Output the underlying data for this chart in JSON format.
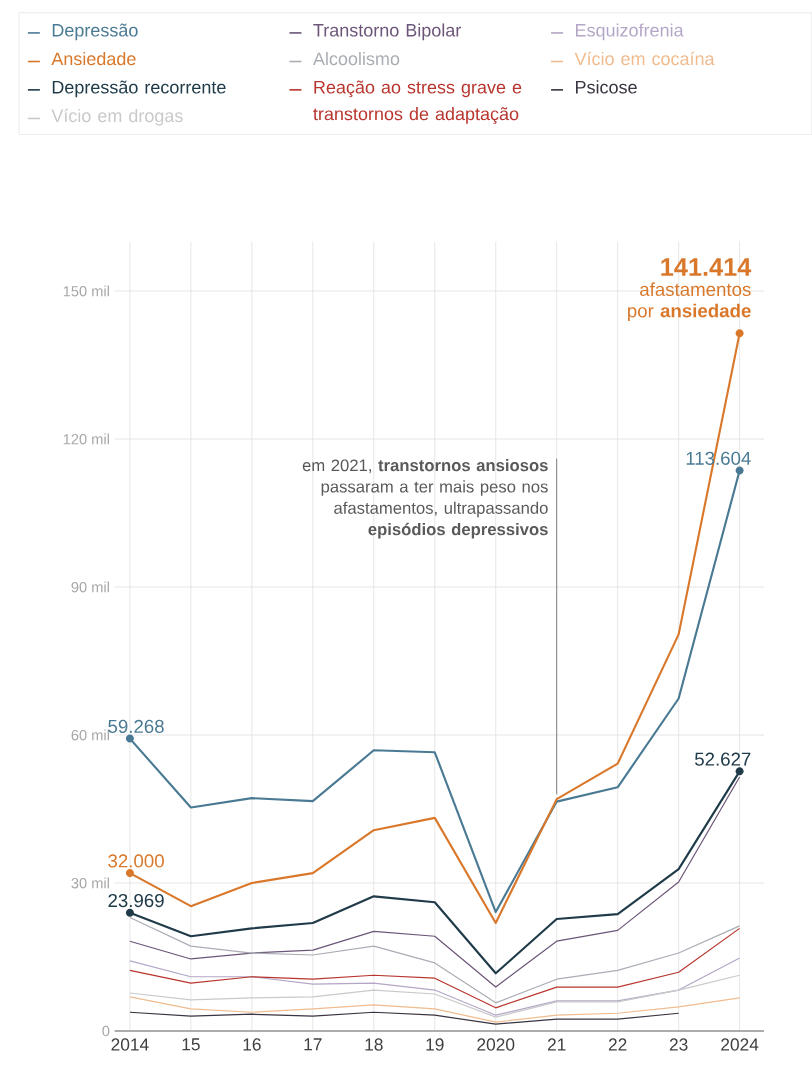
{
  "chart_data": {
    "type": "line",
    "x": [
      2014,
      2015,
      2016,
      2017,
      2018,
      2019,
      2020,
      2021,
      2022,
      2023,
      2024
    ],
    "xlim": [
      2013.75,
      2024.4
    ],
    "ylim": [
      0,
      160
    ],
    "xticks": [
      2014,
      {
        "value": 2015,
        "label": "15"
      },
      {
        "value": 2016,
        "label": "16"
      },
      {
        "value": 2017,
        "label": "17"
      },
      {
        "value": 2018,
        "label": "18"
      },
      {
        "value": 2019,
        "label": "19"
      },
      2020,
      {
        "value": 2021,
        "label": "21"
      },
      {
        "value": 2022,
        "label": "22"
      },
      {
        "value": 2023,
        "label": "23"
      },
      2024
    ],
    "yticks": [
      0,
      {
        "value": 30,
        "label": "30 mil"
      },
      {
        "value": 60,
        "label": "60 mil"
      },
      {
        "value": 90,
        "label": "90 mil"
      },
      {
        "value": 120,
        "label": "120 mil"
      },
      {
        "value": 150,
        "label": "150 mil"
      }
    ],
    "grid": true,
    "legend": "top",
    "ref_lines": [
      {
        "axis": "x",
        "value": 2021,
        "label": "em 2021, **transtornos ansiosos** passaram a ter mais peso nos afastamentos, ultrapassando **episódios depressivos**",
        "color": "#666666"
      }
    ],
    "annotations": [
      {
        "text": "afastamentos por **ansiedade**",
        "x": 2024,
        "y": 141.414
      }
    ],
    "series": [
      {
        "name": "Depressão",
        "color": "#4a7a93",
        "values": [
          59.268,
          45.3,
          47.2,
          46.6,
          56.9,
          56.5,
          24.1,
          46.5,
          49.4,
          67.4,
          113.604
        ],
        "value_labels": [
          "59.268",
          null,
          null,
          null,
          null,
          null,
          null,
          null,
          null,
          null,
          "113.604"
        ]
      },
      {
        "name": "Transtorno Bipolar",
        "color": "#6b5578",
        "values": [
          18.2,
          14.6,
          15.8,
          16.4,
          20.2,
          19.2,
          8.9,
          18.2,
          20.4,
          30.2,
          51.5
        ]
      },
      {
        "name": "Esquizofrenia",
        "color": "#b3a6c6",
        "values": [
          14.2,
          11.0,
          11.0,
          9.5,
          9.7,
          8.3,
          3.2,
          6.1,
          6.1,
          8.3,
          14.8
        ]
      },
      {
        "name": "Ansiedade",
        "color": "#d9782b",
        "values": [
          32.0,
          25.3,
          30.0,
          32.0,
          40.7,
          43.2,
          21.9,
          47.0,
          54.2,
          80.4,
          141.414
        ],
        "value_labels": [
          "32.000",
          null,
          null,
          null,
          null,
          null,
          null,
          null,
          null,
          null,
          "141.414"
        ]
      },
      {
        "name": "Alcoolismo",
        "color": "#a9adb4",
        "values": [
          23.0,
          17.2,
          15.8,
          15.4,
          17.2,
          13.8,
          5.7,
          10.5,
          12.3,
          15.8,
          21.3
        ]
      },
      {
        "name": "Vício em cocaína",
        "color": "#f0bb8e",
        "values": [
          6.9,
          4.5,
          3.8,
          4.5,
          5.3,
          4.5,
          1.8,
          3.2,
          3.6,
          4.9,
          6.7
        ]
      },
      {
        "name": "Depressão recorrente",
        "color": "#1f3a48",
        "values": [
          23.969,
          19.2,
          20.8,
          21.9,
          27.3,
          26.1,
          11.7,
          22.7,
          23.7,
          32.8,
          52.627
        ],
        "value_labels": [
          "23.969",
          null,
          null,
          null,
          null,
          null,
          null,
          null,
          null,
          null,
          "52.627"
        ]
      },
      {
        "name": "Reação ao stress grave e transtornos de adaptação",
        "color": "#b8352e",
        "values": [
          12.3,
          9.7,
          11.0,
          10.5,
          11.3,
          10.7,
          4.7,
          8.9,
          8.9,
          11.9,
          20.8
        ]
      },
      {
        "name": "Psicose",
        "color": "#3a3340",
        "values": [
          3.8,
          3.0,
          3.4,
          3.0,
          3.8,
          3.2,
          1.4,
          2.4,
          2.4,
          3.6,
          null
        ]
      },
      {
        "name": "Vício em drogas",
        "color": "#c9c9c9",
        "values": [
          7.7,
          6.3,
          6.7,
          6.9,
          8.3,
          7.5,
          2.8,
          5.9,
          5.9,
          8.3,
          11.3
        ]
      }
    ]
  }
}
